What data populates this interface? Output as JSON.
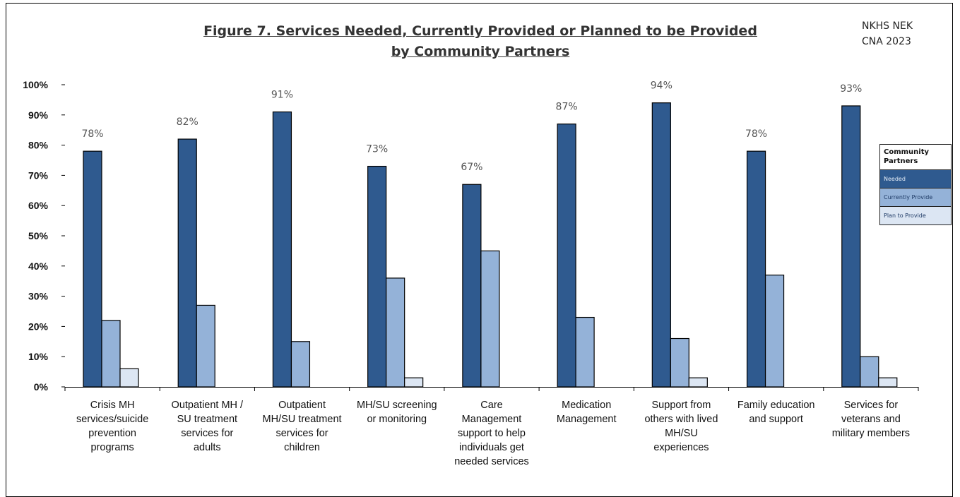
{
  "header": {
    "title_line1": "Figure 7. Services Needed, Currently Provided or Planned to be Provided",
    "title_line2": "by Community Partners",
    "source_line1": "NKHS NEK",
    "source_line2": "CNA 2023"
  },
  "legend": {
    "title": "Community Partners",
    "items": [
      "Needed",
      "Currently Provide",
      "Plan to Provide"
    ]
  },
  "chart_data": {
    "type": "bar",
    "title": "Figure 7. Services Needed, Currently Provided or Planned to be Provided by Community Partners",
    "ylim": [
      0,
      100
    ],
    "yticks": [
      "0%",
      "10%",
      "20%",
      "30%",
      "40%",
      "50%",
      "60%",
      "70%",
      "80%",
      "90%",
      "100%"
    ],
    "grid": false,
    "legend_position": "right",
    "categories": [
      [
        "Crisis MH",
        "services/suicide",
        "prevention",
        "programs"
      ],
      [
        "Outpatient MH /",
        "SU treatment",
        "services for",
        "adults"
      ],
      [
        "Outpatient",
        "MH/SU treatment",
        "services for",
        "children"
      ],
      [
        "MH/SU screening",
        "or monitoring"
      ],
      [
        "Care",
        "Management",
        "support to help",
        "individuals get",
        "needed services"
      ],
      [
        "Medication",
        "Management"
      ],
      [
        "Support from",
        "others with lived",
        "MH/SU",
        "experiences"
      ],
      [
        "Family education",
        "and support"
      ],
      [
        "Services for",
        "veterans and",
        "military members"
      ]
    ],
    "series": [
      {
        "name": "Needed",
        "color": "#2f5a8f",
        "values": [
          78,
          82,
          91,
          73,
          67,
          87,
          94,
          78,
          93
        ]
      },
      {
        "name": "Currently Provide",
        "color": "#94b2d8",
        "values": [
          22,
          27,
          15,
          36,
          45,
          23,
          16,
          37,
          10
        ]
      },
      {
        "name": "Plan to Provide",
        "color": "#dce6f3",
        "values": [
          6,
          0,
          0,
          3,
          0,
          0,
          3,
          0,
          3
        ]
      }
    ],
    "data_labels": [
      "78%",
      "82%",
      "91%",
      "73%",
      "67%",
      "87%",
      "94%",
      "78%",
      "93%"
    ]
  }
}
